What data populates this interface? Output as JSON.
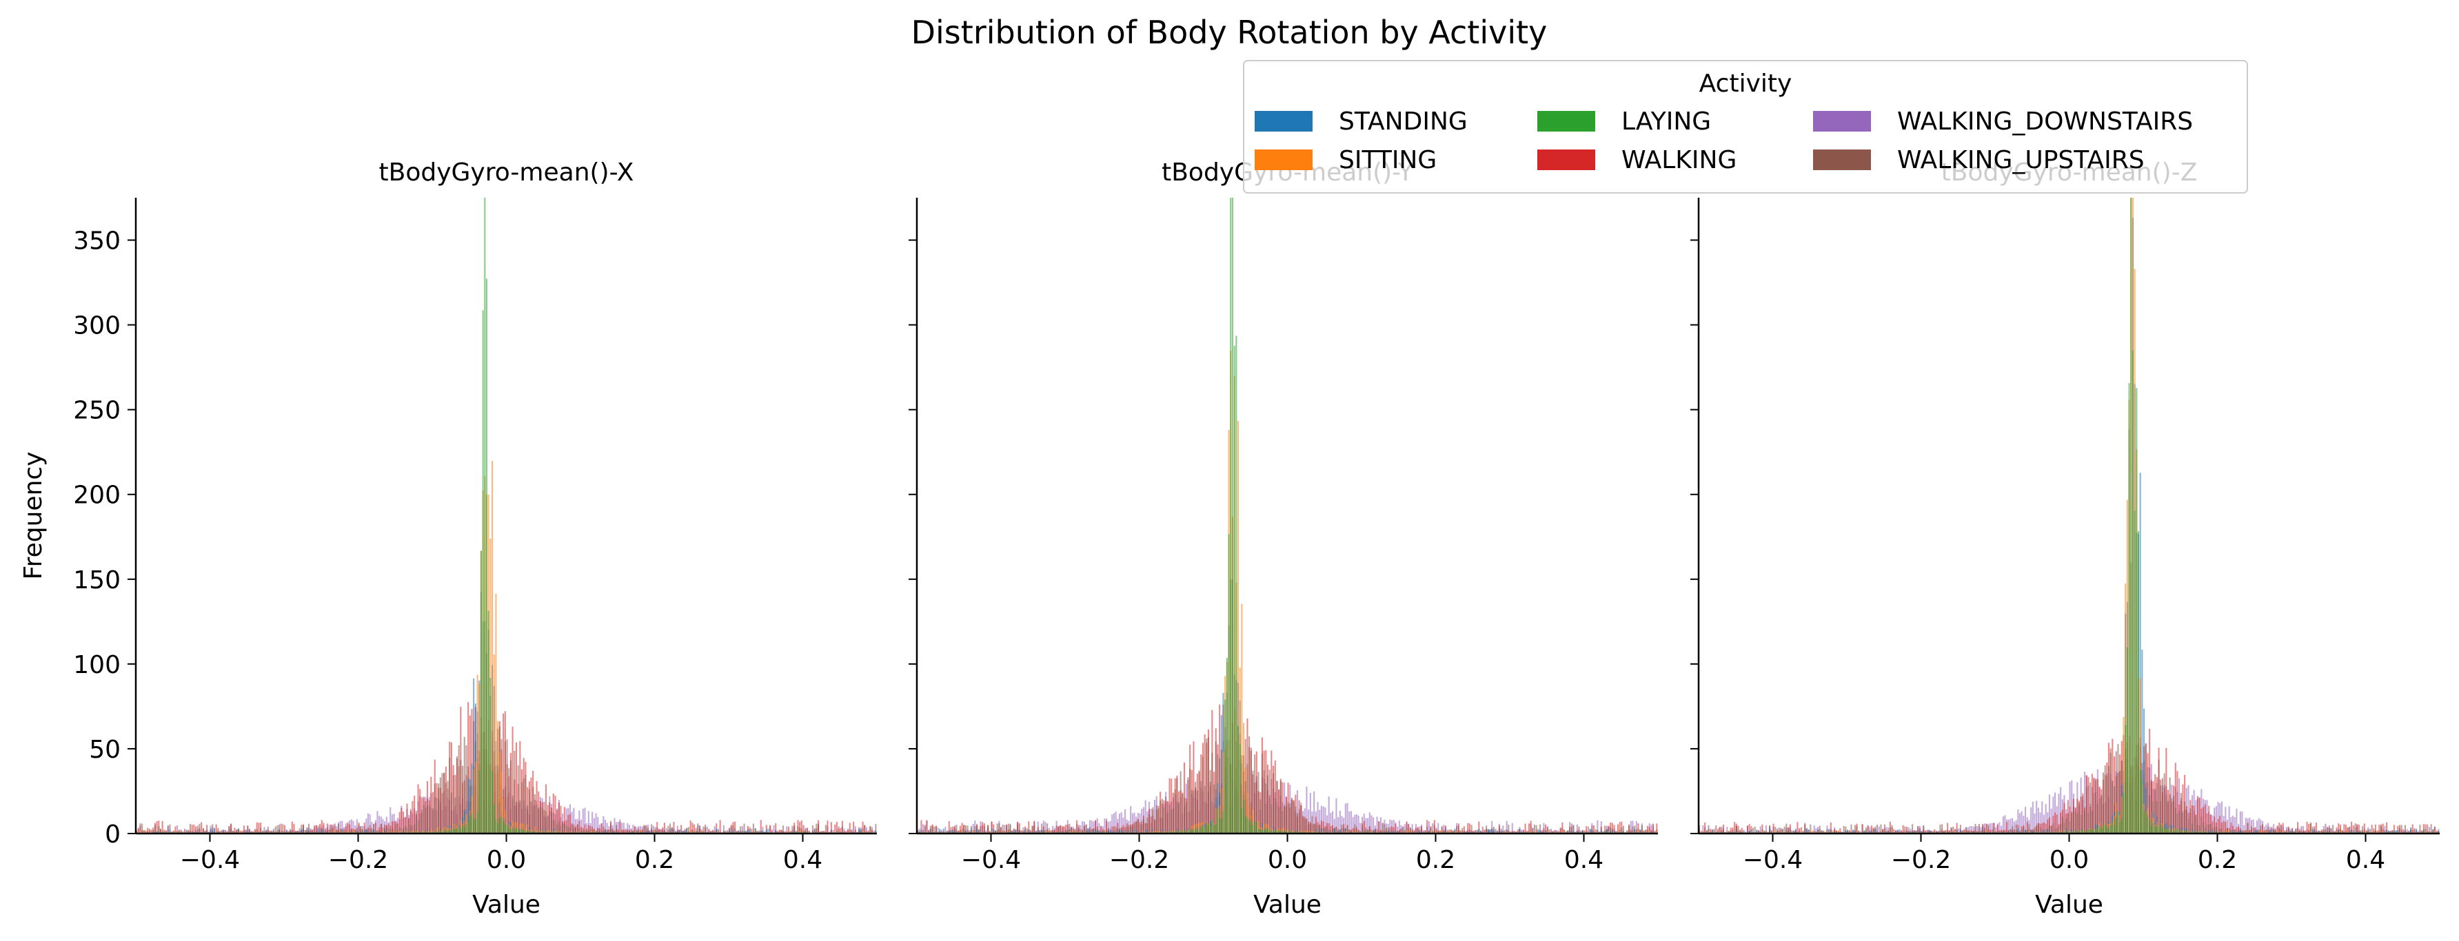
{
  "figure": {
    "title": "Distribution of Body Rotation by Activity"
  },
  "legend": {
    "title": "Activity",
    "placement": "upper-right",
    "ncol": 3,
    "items": [
      {
        "label": "STANDING",
        "color": "#1f77b4"
      },
      {
        "label": "SITTING",
        "color": "#ff7f0e"
      },
      {
        "label": "LAYING",
        "color": "#2ca02c"
      },
      {
        "label": "WALKING",
        "color": "#d62728"
      },
      {
        "label": "WALKING_DOWNSTAIRS",
        "color": "#9467bd"
      },
      {
        "label": "WALKING_UPSTAIRS",
        "color": "#8c564b"
      }
    ]
  },
  "chart_data": [
    {
      "type": "histogram",
      "title": "tBodyGyro-mean()-X",
      "xlabel": "Value",
      "ylabel": "Frequency",
      "xlim": [
        -0.5,
        0.5
      ],
      "ylim": [
        0,
        375
      ],
      "xticks": [
        -0.4,
        -0.2,
        0.0,
        0.2,
        0.4
      ],
      "xticklabels": [
        "−0.4",
        "−0.2",
        "0.0",
        "0.2",
        "0.4"
      ],
      "yticks": [
        0,
        50,
        100,
        150,
        200,
        250,
        300,
        350
      ],
      "yticklabels": [
        "0",
        "50",
        "100",
        "150",
        "200",
        "250",
        "300",
        "350"
      ],
      "series": [
        {
          "name": "STANDING",
          "peak_x": -0.03,
          "peak_count": 125,
          "spread": 0.012,
          "tail": 3
        },
        {
          "name": "SITTING",
          "peak_x": -0.025,
          "peak_count": 200,
          "spread": 0.01,
          "tail": 2
        },
        {
          "name": "LAYING",
          "peak_x": -0.028,
          "peak_count": 375,
          "spread": 0.004,
          "tail": 1
        },
        {
          "name": "WALKING",
          "peak_x": -0.03,
          "peak_count": 60,
          "spread": 0.06,
          "tail": 8
        },
        {
          "name": "WALKING_DOWNSTAIRS",
          "peak_x": -0.03,
          "peak_count": 20,
          "spread": 0.12,
          "tail": 5
        },
        {
          "name": "WALKING_UPSTAIRS",
          "peak_x": -0.03,
          "peak_count": 50,
          "spread": 0.05,
          "tail": 6
        }
      ]
    },
    {
      "type": "histogram",
      "title": "tBodyGyro-mean()-Y",
      "xlabel": "Value",
      "ylabel": "",
      "xlim": [
        -0.5,
        0.5
      ],
      "ylim": [
        0,
        375
      ],
      "xticks": [
        -0.4,
        -0.2,
        0.0,
        0.2,
        0.4
      ],
      "xticklabels": [
        "−0.4",
        "−0.2",
        "0.0",
        "0.2",
        "0.4"
      ],
      "yticks": [
        0,
        50,
        100,
        150,
        200,
        250,
        300,
        350
      ],
      "yticklabels": [],
      "series": [
        {
          "name": "STANDING",
          "peak_x": -0.075,
          "peak_count": 150,
          "spread": 0.01,
          "tail": 3
        },
        {
          "name": "SITTING",
          "peak_x": -0.072,
          "peak_count": 270,
          "spread": 0.008,
          "tail": 2
        },
        {
          "name": "LAYING",
          "peak_x": -0.074,
          "peak_count": 375,
          "spread": 0.005,
          "tail": 1
        },
        {
          "name": "WALKING",
          "peak_x": -0.08,
          "peak_count": 55,
          "spread": 0.06,
          "tail": 8
        },
        {
          "name": "WALKING_DOWNSTAIRS",
          "peak_x": -0.06,
          "peak_count": 25,
          "spread": 0.12,
          "tail": 8
        },
        {
          "name": "WALKING_UPSTAIRS",
          "peak_x": -0.08,
          "peak_count": 45,
          "spread": 0.06,
          "tail": 6
        }
      ]
    },
    {
      "type": "histogram",
      "title": "tBodyGyro-mean()-Z",
      "xlabel": "Value",
      "ylabel": "",
      "xlim": [
        -0.5,
        0.5
      ],
      "ylim": [
        0,
        375
      ],
      "xticks": [
        -0.4,
        -0.2,
        0.0,
        0.2,
        0.4
      ],
      "xticklabels": [
        "−0.4",
        "0.0",
        "0.2",
        "0.4"
      ],
      "xticklabels_full": [
        "−0.4",
        "−0.2",
        "0.0",
        "0.2",
        "0.4"
      ],
      "yticks": [
        0,
        50,
        100,
        150,
        200,
        250,
        300,
        350
      ],
      "yticklabels": [],
      "series": [
        {
          "name": "STANDING",
          "peak_x": 0.088,
          "peak_count": 265,
          "spread": 0.008,
          "tail": 3
        },
        {
          "name": "SITTING",
          "peak_x": 0.085,
          "peak_count": 375,
          "spread": 0.006,
          "tail": 2
        },
        {
          "name": "LAYING",
          "peak_x": 0.086,
          "peak_count": 285,
          "spread": 0.006,
          "tail": 1
        },
        {
          "name": "WALKING",
          "peak_x": 0.09,
          "peak_count": 45,
          "spread": 0.06,
          "tail": 7
        },
        {
          "name": "WALKING_DOWNSTAIRS",
          "peak_x": 0.08,
          "peak_count": 30,
          "spread": 0.1,
          "tail": 5
        },
        {
          "name": "WALKING_UPSTAIRS",
          "peak_x": 0.085,
          "peak_count": 40,
          "spread": 0.05,
          "tail": 6
        }
      ]
    }
  ]
}
